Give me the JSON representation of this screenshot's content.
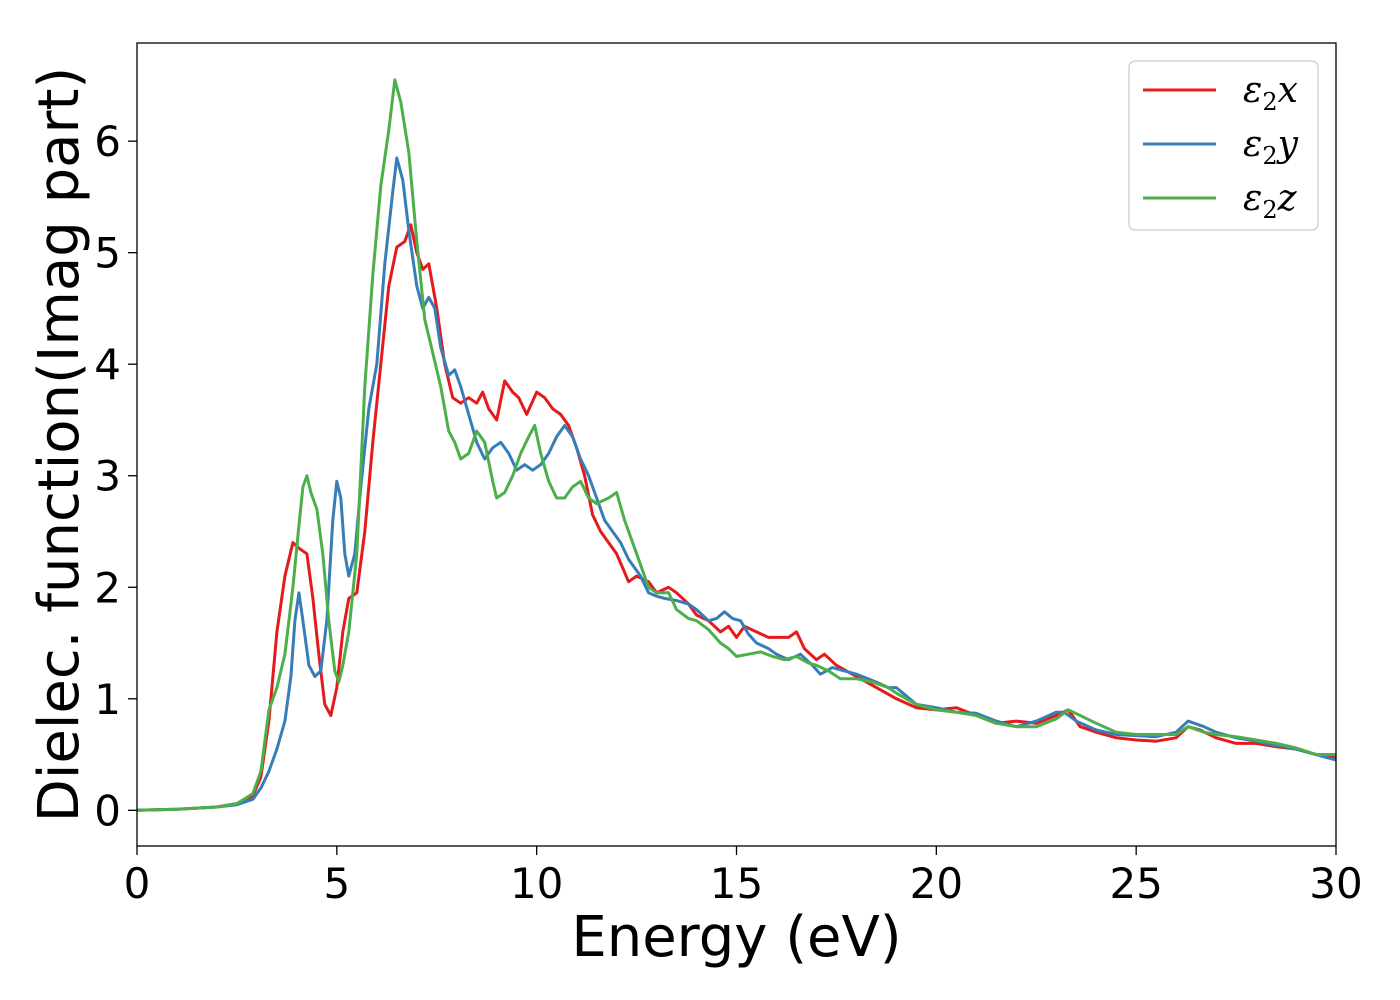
{
  "chart_data": {
    "type": "line",
    "title": "",
    "xlabel": "Energy (eV)",
    "ylabel": "Dielec. function(Imag part)",
    "xlim": [
      0,
      30
    ],
    "ylim": [
      -0.32,
      6.88
    ],
    "xticks": [
      0,
      5,
      10,
      15,
      20,
      25,
      30
    ],
    "yticks": [
      0,
      1,
      2,
      3,
      4,
      5,
      6
    ],
    "grid": false,
    "legend_position": "top-right",
    "series": [
      {
        "name": "ε₂x",
        "legend": {
          "base": "ε",
          "sub": "2",
          "suffix": "x"
        },
        "color": "#e41a1c",
        "points": [
          [
            0,
            0
          ],
          [
            1,
            0.01
          ],
          [
            2,
            0.03
          ],
          [
            2.5,
            0.06
          ],
          [
            2.9,
            0.13
          ],
          [
            3.1,
            0.3
          ],
          [
            3.3,
            0.8
          ],
          [
            3.5,
            1.6
          ],
          [
            3.7,
            2.1
          ],
          [
            3.9,
            2.4
          ],
          [
            4.05,
            2.35
          ],
          [
            4.25,
            2.3
          ],
          [
            4.4,
            1.9
          ],
          [
            4.55,
            1.4
          ],
          [
            4.7,
            0.95
          ],
          [
            4.85,
            0.85
          ],
          [
            5.0,
            1.1
          ],
          [
            5.15,
            1.6
          ],
          [
            5.3,
            1.9
          ],
          [
            5.5,
            1.95
          ],
          [
            5.7,
            2.5
          ],
          [
            5.9,
            3.3
          ],
          [
            6.1,
            4.0
          ],
          [
            6.3,
            4.7
          ],
          [
            6.5,
            5.05
          ],
          [
            6.7,
            5.1
          ],
          [
            6.85,
            5.25
          ],
          [
            7.0,
            5.0
          ],
          [
            7.15,
            4.85
          ],
          [
            7.3,
            4.9
          ],
          [
            7.5,
            4.5
          ],
          [
            7.7,
            4.0
          ],
          [
            7.9,
            3.7
          ],
          [
            8.1,
            3.65
          ],
          [
            8.3,
            3.7
          ],
          [
            8.5,
            3.65
          ],
          [
            8.65,
            3.75
          ],
          [
            8.8,
            3.6
          ],
          [
            9.0,
            3.5
          ],
          [
            9.2,
            3.85
          ],
          [
            9.4,
            3.75
          ],
          [
            9.55,
            3.7
          ],
          [
            9.75,
            3.55
          ],
          [
            10.0,
            3.75
          ],
          [
            10.2,
            3.7
          ],
          [
            10.4,
            3.6
          ],
          [
            10.6,
            3.55
          ],
          [
            10.8,
            3.45
          ],
          [
            11.0,
            3.25
          ],
          [
            11.2,
            3.0
          ],
          [
            11.4,
            2.65
          ],
          [
            11.6,
            2.5
          ],
          [
            11.8,
            2.4
          ],
          [
            12.0,
            2.3
          ],
          [
            12.3,
            2.05
          ],
          [
            12.5,
            2.1
          ],
          [
            12.8,
            2.05
          ],
          [
            13.0,
            1.95
          ],
          [
            13.3,
            2.0
          ],
          [
            13.5,
            1.95
          ],
          [
            13.8,
            1.85
          ],
          [
            14.0,
            1.75
          ],
          [
            14.3,
            1.7
          ],
          [
            14.6,
            1.6
          ],
          [
            14.8,
            1.65
          ],
          [
            15.0,
            1.55
          ],
          [
            15.2,
            1.65
          ],
          [
            15.5,
            1.6
          ],
          [
            15.8,
            1.55
          ],
          [
            16.0,
            1.55
          ],
          [
            16.3,
            1.55
          ],
          [
            16.5,
            1.6
          ],
          [
            16.7,
            1.45
          ],
          [
            17.0,
            1.35
          ],
          [
            17.2,
            1.4
          ],
          [
            17.5,
            1.3
          ],
          [
            18.0,
            1.2
          ],
          [
            18.5,
            1.1
          ],
          [
            19.0,
            1.0
          ],
          [
            19.5,
            0.92
          ],
          [
            20.0,
            0.9
          ],
          [
            20.5,
            0.92
          ],
          [
            21.0,
            0.85
          ],
          [
            21.5,
            0.78
          ],
          [
            22.0,
            0.8
          ],
          [
            22.5,
            0.78
          ],
          [
            23.0,
            0.85
          ],
          [
            23.3,
            0.9
          ],
          [
            23.6,
            0.75
          ],
          [
            24.0,
            0.7
          ],
          [
            24.5,
            0.65
          ],
          [
            25.0,
            0.63
          ],
          [
            25.5,
            0.62
          ],
          [
            26.0,
            0.65
          ],
          [
            26.3,
            0.75
          ],
          [
            26.6,
            0.72
          ],
          [
            27.0,
            0.65
          ],
          [
            27.5,
            0.6
          ],
          [
            28.0,
            0.6
          ],
          [
            28.5,
            0.57
          ],
          [
            29.0,
            0.55
          ],
          [
            29.5,
            0.5
          ],
          [
            30.0,
            0.47
          ]
        ]
      },
      {
        "name": "ε₂y",
        "legend": {
          "base": "ε",
          "sub": "2",
          "suffix": "y"
        },
        "color": "#377eb8",
        "points": [
          [
            0,
            0
          ],
          [
            1,
            0.01
          ],
          [
            2,
            0.03
          ],
          [
            2.5,
            0.05
          ],
          [
            2.9,
            0.1
          ],
          [
            3.1,
            0.2
          ],
          [
            3.3,
            0.35
          ],
          [
            3.5,
            0.55
          ],
          [
            3.7,
            0.8
          ],
          [
            3.85,
            1.2
          ],
          [
            3.95,
            1.7
          ],
          [
            4.05,
            1.95
          ],
          [
            4.15,
            1.7
          ],
          [
            4.3,
            1.3
          ],
          [
            4.45,
            1.2
          ],
          [
            4.6,
            1.25
          ],
          [
            4.75,
            1.7
          ],
          [
            4.9,
            2.6
          ],
          [
            5.0,
            2.95
          ],
          [
            5.1,
            2.8
          ],
          [
            5.2,
            2.3
          ],
          [
            5.3,
            2.1
          ],
          [
            5.45,
            2.3
          ],
          [
            5.6,
            2.9
          ],
          [
            5.8,
            3.6
          ],
          [
            6.0,
            4.0
          ],
          [
            6.2,
            4.9
          ],
          [
            6.4,
            5.55
          ],
          [
            6.5,
            5.85
          ],
          [
            6.65,
            5.65
          ],
          [
            6.8,
            5.2
          ],
          [
            7.0,
            4.7
          ],
          [
            7.15,
            4.5
          ],
          [
            7.3,
            4.6
          ],
          [
            7.45,
            4.5
          ],
          [
            7.6,
            4.15
          ],
          [
            7.8,
            3.9
          ],
          [
            7.95,
            3.95
          ],
          [
            8.1,
            3.8
          ],
          [
            8.3,
            3.55
          ],
          [
            8.5,
            3.3
          ],
          [
            8.7,
            3.15
          ],
          [
            8.9,
            3.25
          ],
          [
            9.1,
            3.3
          ],
          [
            9.3,
            3.2
          ],
          [
            9.5,
            3.05
          ],
          [
            9.7,
            3.1
          ],
          [
            9.9,
            3.05
          ],
          [
            10.1,
            3.1
          ],
          [
            10.3,
            3.2
          ],
          [
            10.5,
            3.35
          ],
          [
            10.7,
            3.45
          ],
          [
            10.9,
            3.35
          ],
          [
            11.1,
            3.15
          ],
          [
            11.3,
            3.0
          ],
          [
            11.5,
            2.8
          ],
          [
            11.7,
            2.6
          ],
          [
            11.9,
            2.5
          ],
          [
            12.1,
            2.4
          ],
          [
            12.3,
            2.25
          ],
          [
            12.6,
            2.1
          ],
          [
            12.8,
            1.95
          ],
          [
            13.0,
            1.92
          ],
          [
            13.2,
            1.9
          ],
          [
            13.5,
            1.88
          ],
          [
            13.8,
            1.85
          ],
          [
            14.0,
            1.8
          ],
          [
            14.3,
            1.7
          ],
          [
            14.5,
            1.72
          ],
          [
            14.7,
            1.78
          ],
          [
            14.9,
            1.72
          ],
          [
            15.1,
            1.7
          ],
          [
            15.3,
            1.58
          ],
          [
            15.5,
            1.5
          ],
          [
            15.8,
            1.45
          ],
          [
            16.0,
            1.4
          ],
          [
            16.3,
            1.35
          ],
          [
            16.6,
            1.4
          ],
          [
            16.9,
            1.3
          ],
          [
            17.1,
            1.22
          ],
          [
            17.4,
            1.28
          ],
          [
            17.7,
            1.25
          ],
          [
            18.0,
            1.22
          ],
          [
            18.5,
            1.15
          ],
          [
            18.8,
            1.1
          ],
          [
            19.0,
            1.1
          ],
          [
            19.5,
            0.95
          ],
          [
            20.0,
            0.92
          ],
          [
            20.5,
            0.88
          ],
          [
            21.0,
            0.87
          ],
          [
            21.5,
            0.8
          ],
          [
            22.0,
            0.75
          ],
          [
            22.5,
            0.8
          ],
          [
            23.0,
            0.88
          ],
          [
            23.2,
            0.88
          ],
          [
            23.5,
            0.8
          ],
          [
            24.0,
            0.72
          ],
          [
            24.5,
            0.68
          ],
          [
            25.0,
            0.67
          ],
          [
            25.5,
            0.66
          ],
          [
            26.0,
            0.7
          ],
          [
            26.3,
            0.8
          ],
          [
            26.7,
            0.75
          ],
          [
            27.0,
            0.7
          ],
          [
            27.5,
            0.65
          ],
          [
            28.0,
            0.62
          ],
          [
            28.5,
            0.58
          ],
          [
            29.0,
            0.55
          ],
          [
            29.5,
            0.5
          ],
          [
            30.0,
            0.45
          ]
        ]
      },
      {
        "name": "ε₂z",
        "legend": {
          "base": "ε",
          "sub": "2",
          "suffix": "z"
        },
        "color": "#4daf4a",
        "points": [
          [
            0,
            0
          ],
          [
            1,
            0.01
          ],
          [
            2,
            0.03
          ],
          [
            2.5,
            0.06
          ],
          [
            2.9,
            0.15
          ],
          [
            3.1,
            0.35
          ],
          [
            3.3,
            0.9
          ],
          [
            3.5,
            1.1
          ],
          [
            3.7,
            1.4
          ],
          [
            3.9,
            2.0
          ],
          [
            4.05,
            2.55
          ],
          [
            4.15,
            2.9
          ],
          [
            4.25,
            3.0
          ],
          [
            4.35,
            2.85
          ],
          [
            4.5,
            2.7
          ],
          [
            4.65,
            2.3
          ],
          [
            4.8,
            1.7
          ],
          [
            4.95,
            1.25
          ],
          [
            5.05,
            1.15
          ],
          [
            5.15,
            1.3
          ],
          [
            5.3,
            1.6
          ],
          [
            5.5,
            2.3
          ],
          [
            5.7,
            3.8
          ],
          [
            5.9,
            4.8
          ],
          [
            6.1,
            5.6
          ],
          [
            6.3,
            6.1
          ],
          [
            6.45,
            6.55
          ],
          [
            6.6,
            6.35
          ],
          [
            6.8,
            5.9
          ],
          [
            7.0,
            5.1
          ],
          [
            7.2,
            4.4
          ],
          [
            7.4,
            4.1
          ],
          [
            7.6,
            3.8
          ],
          [
            7.8,
            3.4
          ],
          [
            7.95,
            3.3
          ],
          [
            8.1,
            3.15
          ],
          [
            8.3,
            3.2
          ],
          [
            8.5,
            3.4
          ],
          [
            8.7,
            3.3
          ],
          [
            8.9,
            2.95
          ],
          [
            9.0,
            2.8
          ],
          [
            9.2,
            2.85
          ],
          [
            9.4,
            3.0
          ],
          [
            9.6,
            3.2
          ],
          [
            9.8,
            3.35
          ],
          [
            9.95,
            3.45
          ],
          [
            10.1,
            3.2
          ],
          [
            10.3,
            2.95
          ],
          [
            10.5,
            2.8
          ],
          [
            10.7,
            2.8
          ],
          [
            10.9,
            2.9
          ],
          [
            11.1,
            2.95
          ],
          [
            11.3,
            2.8
          ],
          [
            11.5,
            2.75
          ],
          [
            11.8,
            2.8
          ],
          [
            12.0,
            2.85
          ],
          [
            12.2,
            2.6
          ],
          [
            12.5,
            2.3
          ],
          [
            12.8,
            2.0
          ],
          [
            13.0,
            1.95
          ],
          [
            13.3,
            1.95
          ],
          [
            13.5,
            1.8
          ],
          [
            13.8,
            1.72
          ],
          [
            14.0,
            1.7
          ],
          [
            14.3,
            1.62
          ],
          [
            14.6,
            1.5
          ],
          [
            14.8,
            1.45
          ],
          [
            15.0,
            1.38
          ],
          [
            15.3,
            1.4
          ],
          [
            15.6,
            1.42
          ],
          [
            15.9,
            1.38
          ],
          [
            16.2,
            1.35
          ],
          [
            16.5,
            1.38
          ],
          [
            16.8,
            1.32
          ],
          [
            17.0,
            1.3
          ],
          [
            17.3,
            1.25
          ],
          [
            17.6,
            1.18
          ],
          [
            18.0,
            1.18
          ],
          [
            18.4,
            1.15
          ],
          [
            18.8,
            1.1
          ],
          [
            19.0,
            1.05
          ],
          [
            19.5,
            0.95
          ],
          [
            20.0,
            0.9
          ],
          [
            20.5,
            0.88
          ],
          [
            21.0,
            0.85
          ],
          [
            21.5,
            0.78
          ],
          [
            22.0,
            0.75
          ],
          [
            22.5,
            0.75
          ],
          [
            23.0,
            0.82
          ],
          [
            23.3,
            0.9
          ],
          [
            23.6,
            0.85
          ],
          [
            24.0,
            0.78
          ],
          [
            24.5,
            0.7
          ],
          [
            25.0,
            0.68
          ],
          [
            25.5,
            0.68
          ],
          [
            26.0,
            0.68
          ],
          [
            26.3,
            0.75
          ],
          [
            26.7,
            0.7
          ],
          [
            27.0,
            0.68
          ],
          [
            27.5,
            0.66
          ],
          [
            28.0,
            0.63
          ],
          [
            28.5,
            0.6
          ],
          [
            29.0,
            0.56
          ],
          [
            29.5,
            0.5
          ],
          [
            30.0,
            0.5
          ]
        ]
      }
    ]
  }
}
